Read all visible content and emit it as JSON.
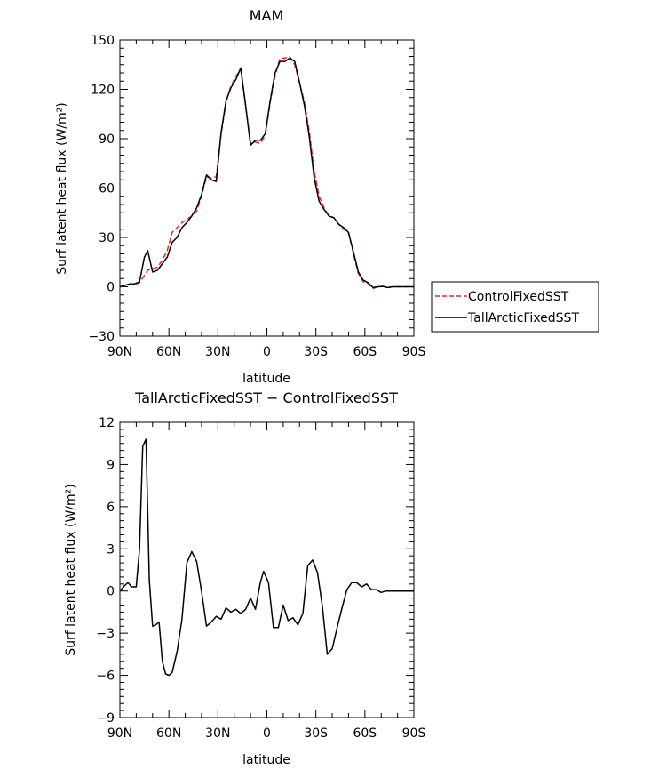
{
  "chart_data": [
    {
      "type": "line",
      "title": "MAM",
      "xlabel": "latitude",
      "ylabel": "Surf latent heat flux (W/m²)",
      "x_tick_labels": [
        "90N",
        "60N",
        "30N",
        "0",
        "30S",
        "60S",
        "90S"
      ],
      "x_tick_values": [
        90,
        60,
        30,
        0,
        -30,
        -60,
        -90
      ],
      "xlim": [
        90,
        -90
      ],
      "ylim": [
        -30,
        150
      ],
      "y_ticks": [
        -30,
        0,
        30,
        60,
        90,
        120,
        150
      ],
      "legend_position": "right",
      "x": [
        90,
        87,
        84,
        81,
        78,
        75,
        73,
        70,
        67,
        64,
        61,
        58,
        55,
        52,
        49,
        46,
        43,
        40,
        37,
        34,
        31,
        28,
        25,
        22,
        19,
        16,
        13,
        10,
        7,
        4,
        1,
        -2,
        -5,
        -8,
        -11,
        -14,
        -17,
        -20,
        -23,
        -26,
        -29,
        -32,
        -35,
        -38,
        -41,
        -44,
        -47,
        -50,
        -53,
        -56,
        -59,
        -62,
        -65,
        -68,
        -71,
        -74,
        -77,
        -80,
        -83,
        -86,
        -90
      ],
      "series": [
        {
          "name": "ControlFixedSST",
          "color": "#e0282e",
          "dash": "dashed",
          "values": [
            0,
            0.5,
            1.2,
            1.5,
            2.5,
            7,
            10,
            11,
            12,
            16,
            22,
            33,
            36,
            39,
            41,
            43,
            46,
            55,
            67,
            66,
            67,
            93,
            112,
            122,
            128,
            132,
            110,
            87,
            88,
            87,
            92,
            112,
            128,
            139,
            139,
            140,
            135,
            124,
            112,
            94,
            70,
            55,
            48,
            43,
            42,
            38,
            35,
            33,
            20,
            8,
            3,
            2,
            -1,
            0,
            0.3,
            -0.5,
            0,
            0,
            0,
            0,
            0
          ]
        },
        {
          "name": "TallArcticFixedSST",
          "color": "#000000",
          "dash": "solid",
          "values": [
            0,
            0.8,
            1.8,
            1.8,
            3,
            18,
            22,
            9,
            10,
            14,
            18,
            27,
            30,
            36,
            39,
            43,
            48,
            56,
            68,
            65,
            64,
            94,
            113,
            121,
            126,
            133,
            110,
            86,
            89,
            89,
            93,
            113,
            130,
            137,
            137,
            139,
            137,
            124,
            110,
            91,
            66,
            52,
            47,
            43,
            42,
            38,
            36,
            33,
            21,
            9,
            4,
            2.5,
            -0.5,
            0,
            0.2,
            -0.5,
            0,
            0,
            0,
            0,
            0
          ]
        }
      ]
    },
    {
      "type": "line",
      "title": "TallArcticFixedSST − ControlFixedSST",
      "xlabel": "latitude",
      "ylabel": "Surf latent heat flux (W/m²)",
      "x_tick_labels": [
        "90N",
        "60N",
        "30N",
        "0",
        "30S",
        "60S",
        "90S"
      ],
      "x_tick_values": [
        90,
        60,
        30,
        0,
        -30,
        -60,
        -90
      ],
      "xlim": [
        90,
        -90
      ],
      "ylim": [
        -9,
        12
      ],
      "y_ticks": [
        -9,
        -6,
        -3,
        0,
        3,
        6,
        9,
        12
      ],
      "x": [
        90,
        87,
        85,
        83,
        80,
        78,
        76,
        74,
        72,
        70,
        68,
        66,
        64,
        62,
        60,
        58,
        55,
        52,
        49,
        46,
        43,
        40,
        37,
        34,
        31,
        28,
        25,
        22,
        19,
        16,
        13,
        10,
        7,
        4,
        2,
        -1,
        -4,
        -7,
        -10,
        -13,
        -16,
        -19,
        -22,
        -25,
        -28,
        -31,
        -34,
        -37,
        -40,
        -43,
        -46,
        -49,
        -52,
        -55,
        -58,
        -61,
        -64,
        -67,
        -70,
        -73,
        -76,
        -79,
        -82,
        -85,
        -88,
        -90
      ],
      "series": [
        {
          "name": "TallArcticFixedSST − ControlFixedSST",
          "color": "#000000",
          "dash": "solid",
          "values": [
            0,
            0.4,
            0.6,
            0.3,
            0.3,
            3,
            10.3,
            10.8,
            0.8,
            -2.5,
            -2.4,
            -2.2,
            -5,
            -5.9,
            -6,
            -5.8,
            -4.3,
            -2,
            2,
            2.8,
            2.1,
            0,
            -2.5,
            -2.2,
            -1.8,
            -2,
            -1.2,
            -1.5,
            -1.3,
            -1.6,
            -1.3,
            -0.5,
            -1.3,
            0.6,
            1.4,
            0.6,
            -2.6,
            -2.6,
            -1,
            -2.1,
            -1.9,
            -2.4,
            -1.6,
            1.8,
            2.2,
            1.3,
            -1.1,
            -4.5,
            -4.1,
            -2.6,
            -1.2,
            0.1,
            0.6,
            0.6,
            0.3,
            0.5,
            0.1,
            0.1,
            -0.1,
            0,
            0,
            0,
            0,
            0,
            0,
            0
          ]
        }
      ]
    }
  ]
}
